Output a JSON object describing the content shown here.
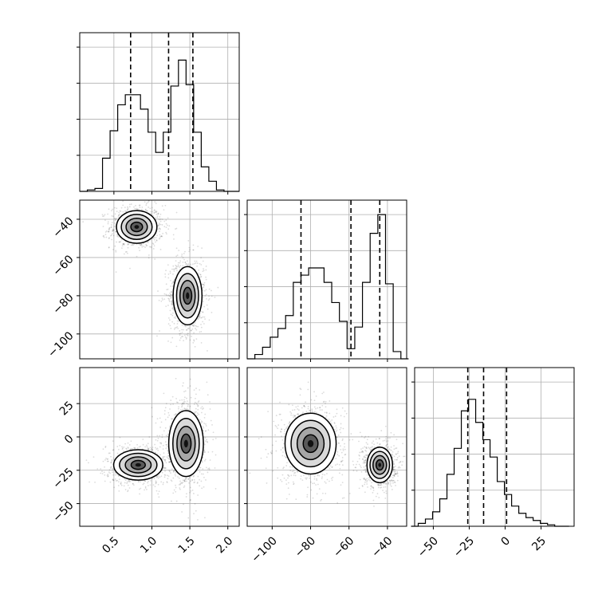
{
  "chart_data": {
    "type": "corner",
    "grid": true,
    "parameters": [
      "",
      "",
      ""
    ],
    "histograms": [
      {
        "panel": "param-1-marginal",
        "type": "histogram",
        "xlim": [
          0.05,
          2.15
        ],
        "ylim": [
          0,
          1
        ],
        "bins": [
          [
            0.1,
            0.0
          ],
          [
            0.2,
            0.01
          ],
          [
            0.3,
            0.02
          ],
          [
            0.4,
            0.23
          ],
          [
            0.5,
            0.42
          ],
          [
            0.6,
            0.6
          ],
          [
            0.7,
            0.67
          ],
          [
            0.8,
            0.67
          ],
          [
            0.9,
            0.57
          ],
          [
            1.0,
            0.41
          ],
          [
            1.1,
            0.27
          ],
          [
            1.2,
            0.41
          ],
          [
            1.3,
            0.73
          ],
          [
            1.4,
            0.91
          ],
          [
            1.5,
            0.74
          ],
          [
            1.6,
            0.41
          ],
          [
            1.7,
            0.17
          ],
          [
            1.8,
            0.07
          ],
          [
            1.9,
            0.01
          ],
          [
            2.0,
            0.0
          ],
          [
            2.1,
            0.0
          ]
        ],
        "quantiles": [
          0.72,
          1.22,
          1.54
        ]
      },
      {
        "panel": "param-2-marginal",
        "type": "histogram",
        "xlim": [
          -113,
          -30
        ],
        "ylim": [
          0,
          1
        ],
        "bins": [
          [
            -111,
            0.0
          ],
          [
            -107,
            0.03
          ],
          [
            -103,
            0.08
          ],
          [
            -99,
            0.15
          ],
          [
            -95,
            0.21
          ],
          [
            -91,
            0.3
          ],
          [
            -87,
            0.53
          ],
          [
            -83,
            0.58
          ],
          [
            -79,
            0.63
          ],
          [
            -75,
            0.63
          ],
          [
            -71,
            0.53
          ],
          [
            -67,
            0.39
          ],
          [
            -63,
            0.26
          ],
          [
            -59,
            0.07
          ],
          [
            -55,
            0.22
          ],
          [
            -51,
            0.53
          ],
          [
            -47,
            0.87
          ],
          [
            -43,
            1.0
          ],
          [
            -39,
            0.52
          ],
          [
            -35,
            0.05
          ],
          [
            -31,
            0.0
          ]
        ],
        "quantiles": [
          -85,
          -59,
          -44
        ]
      },
      {
        "panel": "param-3-marginal",
        "type": "histogram",
        "xlim": [
          -63,
          48
        ],
        "ylim": [
          0,
          1
        ],
        "bins": [
          [
            -63,
            0.0
          ],
          [
            -58,
            0.02
          ],
          [
            -53,
            0.05
          ],
          [
            -48,
            0.1
          ],
          [
            -43,
            0.19
          ],
          [
            -38,
            0.36
          ],
          [
            -33,
            0.54
          ],
          [
            -28,
            0.8
          ],
          [
            -23,
            0.88
          ],
          [
            -18,
            0.72
          ],
          [
            -13,
            0.6
          ],
          [
            -8,
            0.48
          ],
          [
            -3,
            0.31
          ],
          [
            2,
            0.22
          ],
          [
            7,
            0.14
          ],
          [
            12,
            0.09
          ],
          [
            17,
            0.06
          ],
          [
            22,
            0.04
          ],
          [
            27,
            0.02
          ],
          [
            32,
            0.01
          ],
          [
            37,
            0.0
          ],
          [
            42,
            0.0
          ]
        ],
        "quantiles": [
          -26,
          -15,
          1
        ]
      }
    ],
    "scatter_panels": [
      {
        "panel": "param-1-vs-param-2",
        "type": "scatter",
        "xlim": [
          0.05,
          2.15
        ],
        "ylim": [
          -113,
          -30
        ],
        "modes": [
          {
            "center": [
              0.8,
              -44
            ],
            "spread": [
              0.14,
              4.5
            ]
          },
          {
            "center": [
              1.47,
              -80
            ],
            "spread": [
              0.1,
              8.0
            ]
          }
        ]
      },
      {
        "panel": "param-1-vs-param-3",
        "type": "scatter",
        "xlim": [
          0.05,
          2.15
        ],
        "ylim": [
          -67,
          52
        ],
        "modes": [
          {
            "center": [
              0.82,
              -21
            ],
            "spread": [
              0.17,
              6.0
            ]
          },
          {
            "center": [
              1.45,
              -5
            ],
            "spread": [
              0.12,
              13.0
            ]
          }
        ]
      },
      {
        "panel": "param-2-vs-param-3",
        "type": "scatter",
        "xlim": [
          -113,
          -30
        ],
        "ylim": [
          -67,
          52
        ],
        "modes": [
          {
            "center": [
              -80,
              -5
            ],
            "spread": [
              7.0,
              12.0
            ]
          },
          {
            "center": [
              -44,
              -21
            ],
            "spread": [
              3.5,
              7.0
            ]
          }
        ]
      }
    ],
    "x_tick_labels": {
      "param-1": [
        "0.5",
        "1.0",
        "1.5",
        "2.0"
      ],
      "param-2": [
        "−100",
        "−80",
        "−60",
        "−40"
      ],
      "param-3": [
        "−50",
        "−25",
        "0",
        "25"
      ]
    },
    "y_tick_labels": {
      "param-2": [
        "−40",
        "−60",
        "−80",
        "−100"
      ],
      "param-3": [
        "25",
        "0",
        "−25",
        "−50"
      ]
    },
    "x_tick_values": {
      "param-1": [
        0.5,
        1.0,
        1.5,
        2.0
      ],
      "param-2": [
        -100,
        -80,
        -60,
        -40
      ],
      "param-3": [
        -50,
        -25,
        0,
        25
      ]
    },
    "y_tick_values": {
      "param-2": [
        -40,
        -60,
        -80,
        -100
      ],
      "param-3": [
        25,
        0,
        -25,
        -50
      ]
    }
  }
}
